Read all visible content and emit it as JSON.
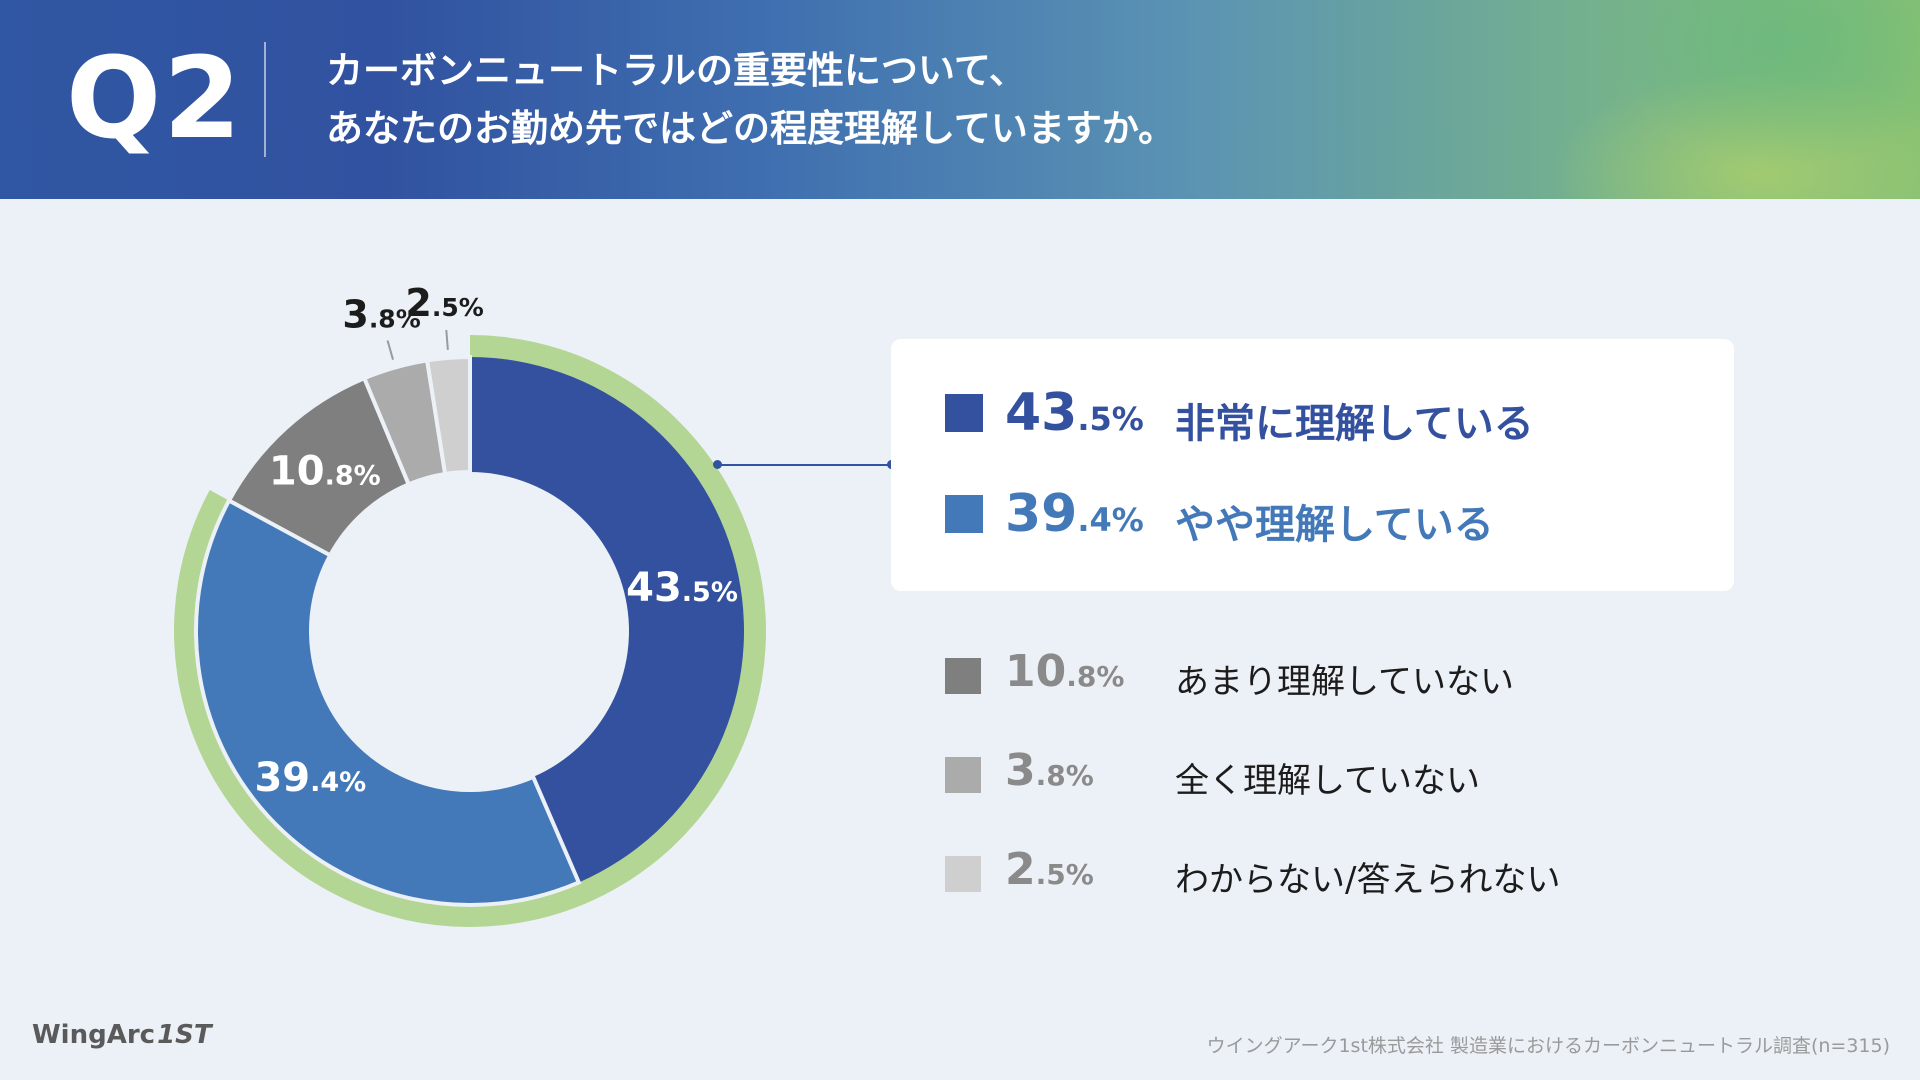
{
  "header": {
    "q_label": "Q2",
    "question_line1": "カーボンニュートラルの重要性について、",
    "question_line2": "あなたのお勤め先ではどの程度理解していますか。"
  },
  "colors": {
    "very_understand": "#3451a0",
    "somewhat_understand": "#4379b8",
    "not_much": "#7f7f7f",
    "not_at_all": "#ababab",
    "dont_know": "#cfcfcf",
    "highlight_ring": "#b4d694"
  },
  "chart_data": {
    "type": "pie",
    "variant": "donut",
    "title": "カーボンニュートラルの重要性について、あなたのお勤め先ではどの程度理解していますか。",
    "categories": [
      "非常に理解している",
      "やや理解している",
      "あまり理解していない",
      "全く理解していない",
      "わからない/答えられない"
    ],
    "values": [
      43.5,
      39.4,
      10.8,
      3.8,
      2.5
    ],
    "unit": "%",
    "highlighted": [
      "非常に理解している",
      "やや理解している"
    ]
  },
  "slice_labels": [
    {
      "int": "43",
      "dec": ".5%"
    },
    {
      "int": "39",
      "dec": ".4%"
    },
    {
      "int": "10",
      "dec": ".8%"
    },
    {
      "int": "3",
      "dec": ".8%"
    },
    {
      "int": "2",
      "dec": ".5%"
    }
  ],
  "legend": {
    "main": [
      {
        "int": "43",
        "dec": ".5%",
        "label": "非常に理解している"
      },
      {
        "int": "39",
        "dec": ".4%",
        "label": "やや理解している"
      }
    ],
    "sub": [
      {
        "int": "10",
        "dec": ".8%",
        "label": "あまり理解していない"
      },
      {
        "int": "3",
        "dec": ".8%",
        "label": "全く理解していない"
      },
      {
        "int": "2",
        "dec": ".5%",
        "label": "わからない/答えられない"
      }
    ]
  },
  "footer": {
    "logo_text": "WingArc",
    "logo_mark": "1ST",
    "source": "ウイングアーク1st株式会社 製造業におけるカーボンニュートラル調査(n=315)"
  }
}
